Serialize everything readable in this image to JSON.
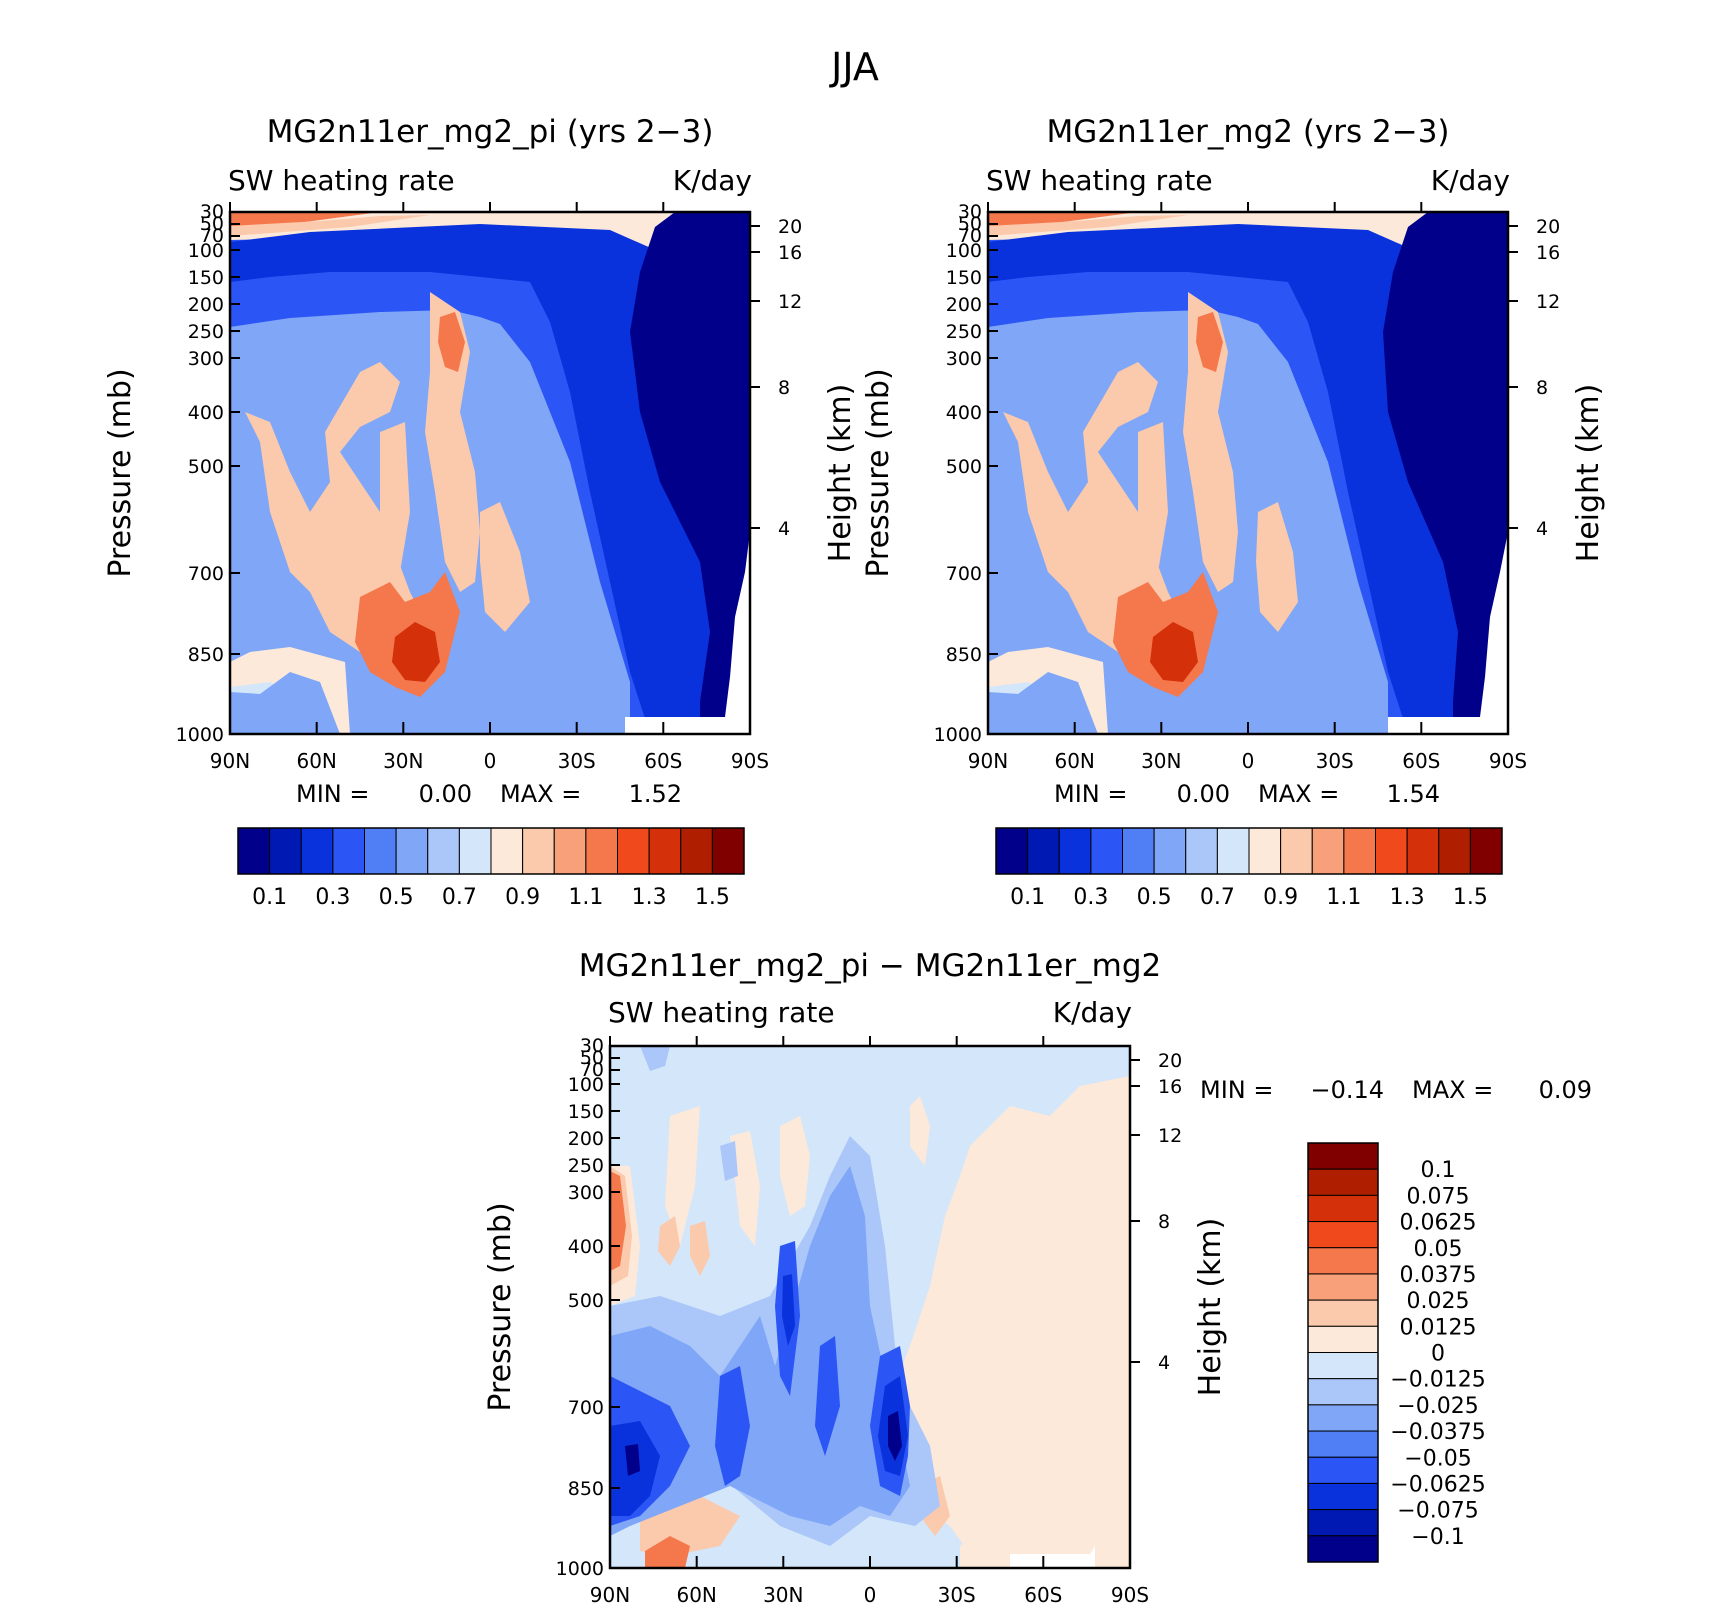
{
  "figure": {
    "title": "JJA"
  },
  "panels": [
    {
      "title": "MG2n11er_mg2_pi (yrs 2−3)",
      "left_label": "SW heating rate",
      "right_label": "K/day",
      "ylabel": "Pressure (mb)",
      "ylabel2": "Height (km)",
      "stats": {
        "min_label": "MIN =",
        "min_value": "0.00",
        "max_label": "MAX =",
        "max_value": "1.52"
      }
    },
    {
      "title": "MG2n11er_mg2 (yrs 2−3)",
      "left_label": "SW heating rate",
      "right_label": "K/day",
      "ylabel": "Pressure (mb)",
      "ylabel2": "Height (km)",
      "stats": {
        "min_label": "MIN =",
        "min_value": "0.00",
        "max_label": "MAX =",
        "max_value": "1.54"
      }
    },
    {
      "title": "MG2n11er_mg2_pi − MG2n11er_mg2",
      "left_label": "SW heating rate",
      "right_label": "K/day",
      "ylabel": "Pressure (mb)",
      "ylabel2": "Height (km)",
      "stats": {
        "min_label": "MIN =",
        "min_value": "−0.14",
        "max_label": "MAX =",
        "max_value": "0.09"
      }
    }
  ],
  "axes": {
    "x_ticks": [
      "90N",
      "60N",
      "30N",
      "0",
      "30S",
      "60S",
      "90S"
    ],
    "pressure_ticks": [
      "30",
      "50",
      "70",
      "100",
      "150",
      "200",
      "250",
      "300",
      "400",
      "500",
      "700",
      "850",
      "1000"
    ],
    "height_ticks": [
      "20",
      "16",
      "12",
      "8",
      "4"
    ]
  },
  "colorbars": {
    "absolute": {
      "labels": [
        "0.1",
        "0.3",
        "0.5",
        "0.7",
        "0.9",
        "1.1",
        "1.3",
        "1.5"
      ],
      "colors": [
        "#00008a",
        "#0019b3",
        "#0a32dc",
        "#2b55f5",
        "#4f7ef5",
        "#7fa6f7",
        "#abc7f9",
        "#d4e6fa",
        "#fde9d9",
        "#fbc9ab",
        "#f7a07a",
        "#f5784d",
        "#f04a1c",
        "#d4300a",
        "#b01e00",
        "#800000"
      ]
    },
    "difference": {
      "labels": [
        "0.1",
        "0.075",
        "0.0625",
        "0.05",
        "0.0375",
        "0.025",
        "0.0125",
        "0",
        "−0.0125",
        "−0.025",
        "−0.0375",
        "−0.05",
        "−0.0625",
        "−0.075",
        "−0.1"
      ],
      "colors": [
        "#800000",
        "#b01e00",
        "#d4300a",
        "#f04a1c",
        "#f5784d",
        "#f7a07a",
        "#fbc9ab",
        "#fde9d9",
        "#d4e6fa",
        "#abc7f9",
        "#7fa6f7",
        "#4f7ef5",
        "#2b55f5",
        "#0a32dc",
        "#0019b3",
        "#00008a"
      ]
    }
  },
  "chart_data": [
    {
      "type": "heatmap",
      "title": "MG2n11er_mg2_pi (yrs 2−3)",
      "variable": "SW heating rate",
      "units": "K/day",
      "xlabel": "",
      "ylabel": "Pressure (mb)",
      "x": [
        "90N",
        "60N",
        "30N",
        "0",
        "30S",
        "60S",
        "90S"
      ],
      "pressure_levels": [
        30,
        50,
        70,
        100,
        150,
        200,
        250,
        300,
        400,
        500,
        700,
        850,
        1000
      ],
      "ylim": [
        1000,
        30
      ],
      "min": 0.0,
      "max": 1.52,
      "contour_levels": [
        0.1,
        0.2,
        0.3,
        0.4,
        0.5,
        0.6,
        0.7,
        0.8,
        0.9,
        1.0,
        1.1,
        1.2,
        1.3,
        1.4,
        1.5
      ]
    },
    {
      "type": "heatmap",
      "title": "MG2n11er_mg2 (yrs 2−3)",
      "variable": "SW heating rate",
      "units": "K/day",
      "xlabel": "",
      "ylabel": "Pressure (mb)",
      "x": [
        "90N",
        "60N",
        "30N",
        "0",
        "30S",
        "60S",
        "90S"
      ],
      "pressure_levels": [
        30,
        50,
        70,
        100,
        150,
        200,
        250,
        300,
        400,
        500,
        700,
        850,
        1000
      ],
      "ylim": [
        1000,
        30
      ],
      "min": 0.0,
      "max": 1.54,
      "contour_levels": [
        0.1,
        0.2,
        0.3,
        0.4,
        0.5,
        0.6,
        0.7,
        0.8,
        0.9,
        1.0,
        1.1,
        1.2,
        1.3,
        1.4,
        1.5
      ]
    },
    {
      "type": "heatmap",
      "title": "MG2n11er_mg2_pi − MG2n11er_mg2",
      "variable": "SW heating rate",
      "units": "K/day",
      "xlabel": "",
      "ylabel": "Pressure (mb)",
      "x": [
        "90N",
        "60N",
        "30N",
        "0",
        "30S",
        "60S",
        "90S"
      ],
      "pressure_levels": [
        30,
        50,
        70,
        100,
        150,
        200,
        250,
        300,
        400,
        500,
        700,
        850,
        1000
      ],
      "ylim": [
        1000,
        30
      ],
      "min": -0.14,
      "max": 0.09,
      "contour_levels": [
        -0.1,
        -0.075,
        -0.0625,
        -0.05,
        -0.0375,
        -0.025,
        -0.0125,
        0,
        0.0125,
        0.025,
        0.0375,
        0.05,
        0.0625,
        0.075,
        0.1
      ]
    }
  ]
}
